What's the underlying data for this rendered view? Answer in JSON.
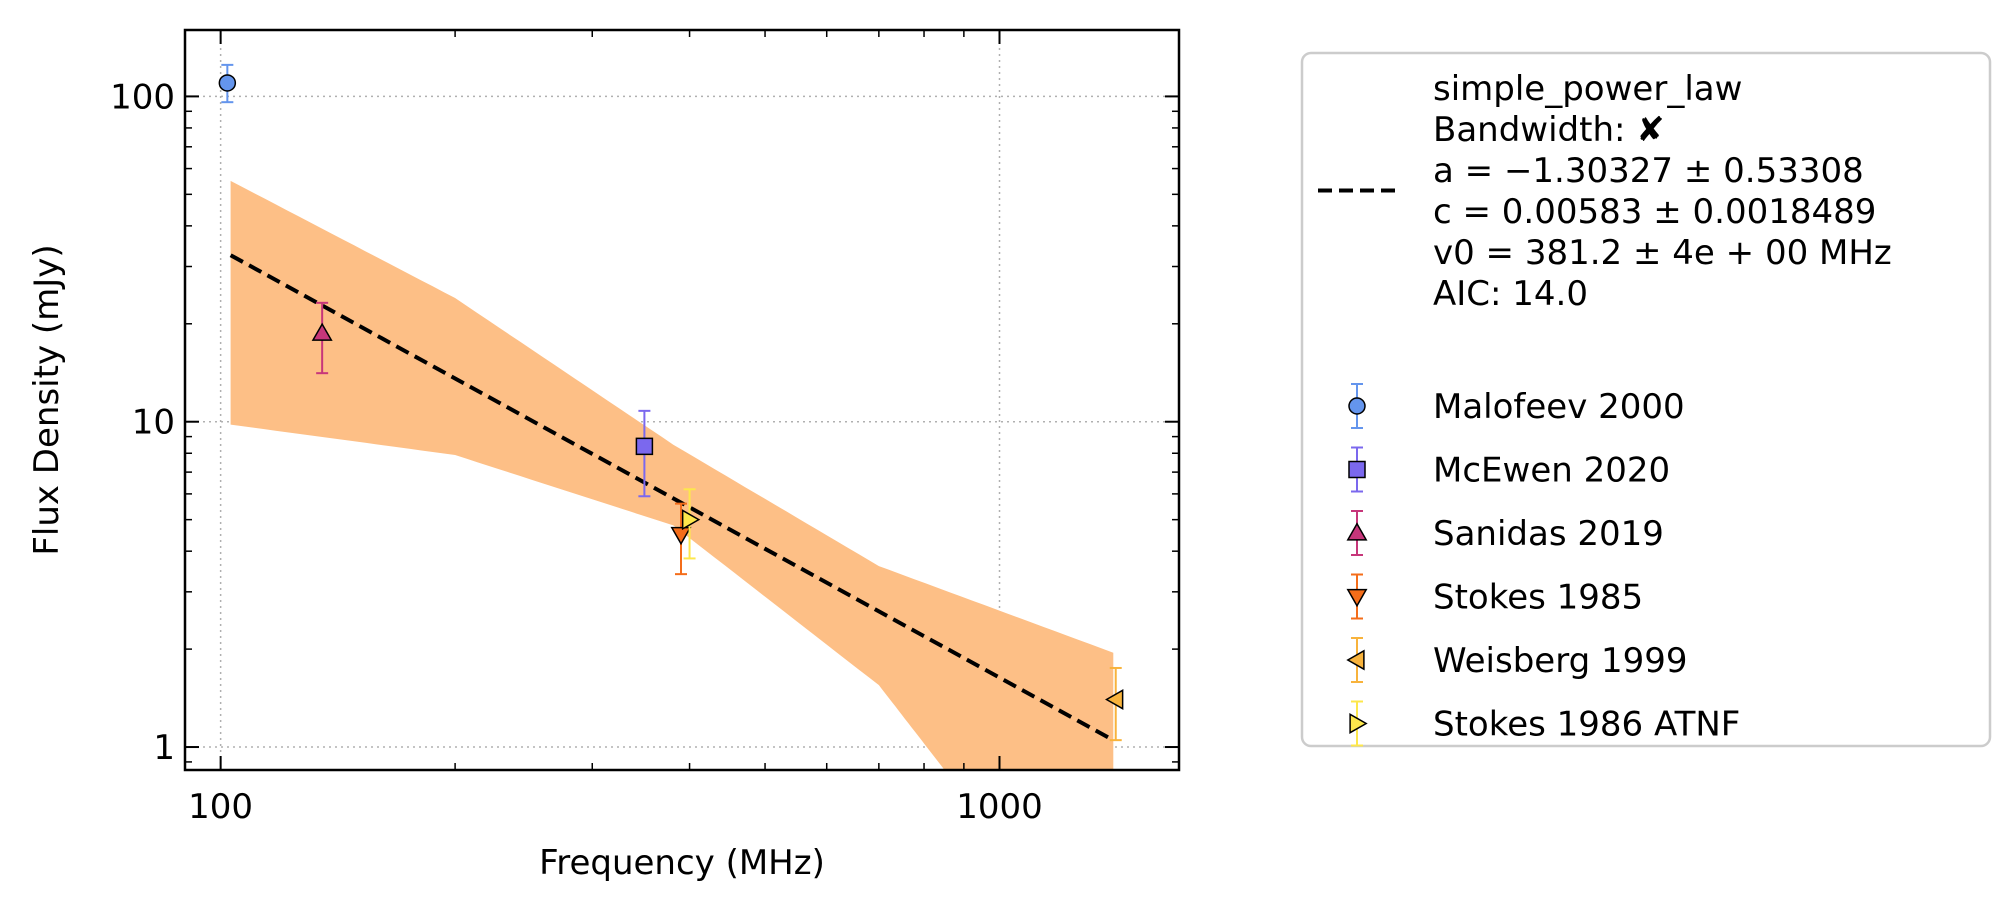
{
  "chart_data": {
    "type": "scatter",
    "title": "",
    "xlabel": "Frequency (MHz)",
    "ylabel": "Flux Density (mJy)",
    "xscale": "log",
    "yscale": "log",
    "xlim": [
      90,
      1700
    ],
    "ylim": [
      0.85,
      160
    ],
    "x_ticks": [
      100,
      1000
    ],
    "x_tick_labels": [
      "100",
      "1000"
    ],
    "y_ticks": [
      1,
      10,
      100
    ],
    "y_tick_labels": [
      "1",
      "10",
      "100"
    ],
    "grid": true,
    "legend_position": "outside-right",
    "fit": {
      "model": "simple_power_law",
      "lines": [
        "simple_power_law",
        "Bandwidth: ✘",
        "a = −1.30327 ± 0.53308",
        "c = 0.00583 ± 0.0018489",
        "v0 = 381.2 ± 4e + 00 MHz",
        "AIC: 14.0"
      ],
      "a": -1.30327,
      "c": 0.00583,
      "v0": 381.2,
      "x_range": [
        103,
        1400
      ],
      "line": [
        [
          103,
          32.5
        ],
        [
          1400,
          1.05
        ]
      ],
      "band_upper": [
        [
          103,
          55
        ],
        [
          200,
          24
        ],
        [
          381.2,
          8.5
        ],
        [
          700,
          3.6
        ],
        [
          1400,
          1.95
        ]
      ],
      "band_lower": [
        [
          103,
          9.8
        ],
        [
          200,
          7.9
        ],
        [
          381.2,
          4.8
        ],
        [
          700,
          1.55
        ],
        [
          850,
          0.85
        ]
      ],
      "band_color": "#fdbf86",
      "line_color": "#000000"
    },
    "series": [
      {
        "name": "Malofeev 2000",
        "marker": "circle",
        "color": "#6495ed",
        "points": [
          {
            "x": 102,
            "y": 110,
            "ylo": 96,
            "yhi": 125
          }
        ]
      },
      {
        "name": "McEwen 2020",
        "marker": "square",
        "color": "#7b68ee",
        "points": [
          {
            "x": 350,
            "y": 8.4,
            "ylo": 5.9,
            "yhi": 10.8
          }
        ]
      },
      {
        "name": "Sanidas 2019",
        "marker": "triangle-up",
        "color": "#c7367a",
        "points": [
          {
            "x": 135,
            "y": 18.7,
            "ylo": 14.1,
            "yhi": 23.2
          }
        ]
      },
      {
        "name": "Stokes 1985",
        "marker": "triangle-down",
        "color": "#f46d1a",
        "points": [
          {
            "x": 390,
            "y": 4.5,
            "ylo": 3.4,
            "yhi": 5.6
          }
        ]
      },
      {
        "name": "Weisberg 1999",
        "marker": "triangle-left",
        "color": "#f8b33c",
        "points": [
          {
            "x": 1410,
            "y": 1.4,
            "ylo": 1.05,
            "yhi": 1.75
          }
        ]
      },
      {
        "name": "Stokes 1986 ATNF",
        "marker": "triangle-right",
        "color": "#fde74c",
        "points": [
          {
            "x": 400,
            "y": 5.0,
            "ylo": 3.8,
            "yhi": 6.2
          }
        ]
      }
    ]
  }
}
